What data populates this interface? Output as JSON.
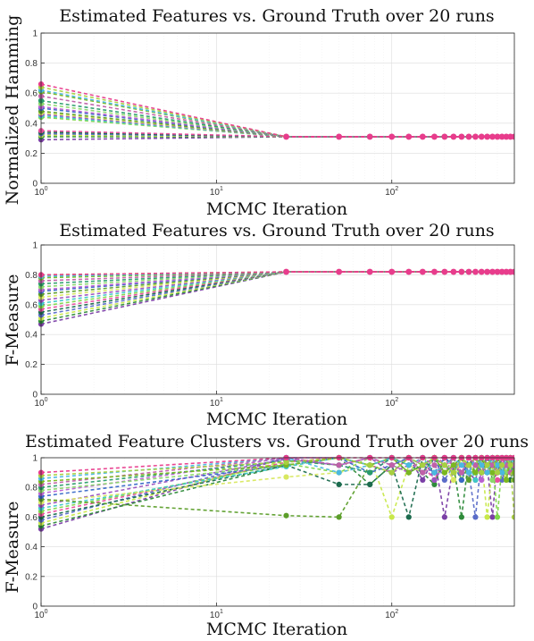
{
  "figure": {
    "xlabel_text": "MCMC Iteration",
    "x_tick_labels": [
      {
        "base": "10",
        "exp": "0"
      },
      {
        "base": "10",
        "exp": "1"
      },
      {
        "base": "10",
        "exp": "2"
      }
    ],
    "y_tick_labels": [
      "0",
      "0.2",
      "0.4",
      "0.6",
      "0.8",
      "1"
    ]
  },
  "colors": {
    "axis": "#262626",
    "grid": "#dcdcdc",
    "palette": [
      "#7b3fa6",
      "#2e8b3a",
      "#c8e84a",
      "#5a6cc8",
      "#1c6b4e",
      "#e84c9c",
      "#7fd64a",
      "#3fc8c8",
      "#9a52c0",
      "#d8e860",
      "#5c9e2a",
      "#3868c8",
      "#b860d0",
      "#8ad86a",
      "#2a9c6a",
      "#c060a8",
      "#7ab820",
      "#4ab8e0",
      "#a8d040",
      "#e83c8c"
    ]
  },
  "chart_data": [
    {
      "type": "line",
      "title": "Estimated Features vs. Ground Truth over 20 runs",
      "xlabel": "MCMC Iteration",
      "ylabel": "Normalized Hamming",
      "xscale": "log",
      "xlim": [
        1,
        500
      ],
      "ylim": [
        0,
        1
      ],
      "grid": true,
      "x": [
        1,
        25,
        50,
        75,
        100,
        125,
        150,
        175,
        200,
        225,
        250,
        275,
        300,
        325,
        350,
        375,
        400,
        425,
        450,
        475,
        500
      ],
      "start_values": [
        0.29,
        0.31,
        0.32,
        0.33,
        0.34,
        0.35,
        0.44,
        0.45,
        0.46,
        0.47,
        0.48,
        0.5,
        0.51,
        0.53,
        0.55,
        0.58,
        0.61,
        0.62,
        0.64,
        0.66
      ],
      "converged_value": 0.31,
      "converged_series_color": "#e83c8c"
    },
    {
      "type": "line",
      "title": "Estimated Features vs. Ground Truth over 20 runs",
      "xlabel": "MCMC Iteration",
      "ylabel": "F-Measure",
      "xscale": "log",
      "xlim": [
        1,
        500
      ],
      "ylim": [
        0,
        1
      ],
      "grid": true,
      "x": [
        1,
        25,
        50,
        75,
        100,
        125,
        150,
        175,
        200,
        225,
        250,
        275,
        300,
        325,
        350,
        375,
        400,
        425,
        450,
        475,
        500
      ],
      "start_values": [
        0.47,
        0.49,
        0.51,
        0.53,
        0.55,
        0.57,
        0.59,
        0.61,
        0.63,
        0.65,
        0.67,
        0.69,
        0.7,
        0.72,
        0.74,
        0.76,
        0.78,
        0.79,
        0.8,
        0.8
      ],
      "converged_value": 0.82,
      "converged_series_color": "#e83c8c"
    },
    {
      "type": "line",
      "title": "Estimated Feature Clusters vs. Ground Truth over 20 runs",
      "xlabel": "MCMC Iteration",
      "ylabel": "F-Measure",
      "xscale": "log",
      "xlim": [
        1,
        500
      ],
      "ylim": [
        0,
        1
      ],
      "grid": true,
      "x": [
        1,
        25,
        50,
        75,
        100,
        125,
        150,
        175,
        200,
        225,
        250,
        275,
        300,
        325,
        350,
        375,
        400,
        425,
        450,
        475,
        500
      ],
      "series_values": [
        [
          0.52,
          1.0,
          1.0,
          0.95,
          0.9,
          1.0,
          0.85,
          1.0,
          0.6,
          0.95,
          1.0,
          0.9,
          0.85,
          1.0,
          0.95,
          0.6,
          1.0,
          0.9,
          0.85,
          1.0,
          0.95
        ],
        [
          0.54,
          0.95,
          1.0,
          0.82,
          0.95,
          1.0,
          0.9,
          0.82,
          1.0,
          0.95,
          0.6,
          1.0,
          0.9,
          0.95,
          1.0,
          0.85,
          0.9,
          1.0,
          0.95,
          0.9,
          1.0
        ],
        [
          0.56,
          0.98,
          0.95,
          1.0,
          0.6,
          0.95,
          1.0,
          0.9,
          0.95,
          0.85,
          1.0,
          0.95,
          0.9,
          1.0,
          0.6,
          0.95,
          1.0,
          0.9,
          0.85,
          0.95,
          1.0
        ],
        [
          0.58,
          1.0,
          0.95,
          0.9,
          1.0,
          0.95,
          0.9,
          1.0,
          0.85,
          0.95,
          1.0,
          0.9,
          0.6,
          1.0,
          0.95,
          0.9,
          1.0,
          0.85,
          0.95,
          1.0,
          0.9
        ],
        [
          0.6,
          0.95,
          0.82,
          0.82,
          0.95,
          0.6,
          1.0,
          0.9,
          0.95,
          1.0,
          0.85,
          0.95,
          1.0,
          0.9,
          0.95,
          1.0,
          0.9,
          0.95,
          1.0,
          0.85,
          0.95
        ],
        [
          0.62,
          0.97,
          1.0,
          0.95,
          0.9,
          1.0,
          0.95,
          0.85,
          1.0,
          0.9,
          0.95,
          1.0,
          0.95,
          0.9,
          1.0,
          0.95,
          0.85,
          1.0,
          0.9,
          0.95,
          1.0
        ],
        [
          0.64,
          0.96,
          0.9,
          1.0,
          0.95,
          0.9,
          1.0,
          0.95,
          0.9,
          1.0,
          0.85,
          0.95,
          1.0,
          0.9,
          0.95,
          1.0,
          0.6,
          0.95,
          1.0,
          0.9,
          0.95
        ],
        [
          0.66,
          0.94,
          1.0,
          0.95,
          1.0,
          0.9,
          0.95,
          1.0,
          0.95,
          0.9,
          1.0,
          0.95,
          0.85,
          1.0,
          0.95,
          0.9,
          1.0,
          0.95,
          0.9,
          1.0,
          0.95
        ],
        [
          0.68,
          0.99,
          0.95,
          1.0,
          0.9,
          0.95,
          1.0,
          0.85,
          0.95,
          1.0,
          0.9,
          0.95,
          1.0,
          0.95,
          0.9,
          1.0,
          0.95,
          0.9,
          1.0,
          0.95,
          0.9
        ],
        [
          0.7,
          0.87,
          0.9,
          0.95,
          1.0,
          0.95,
          0.9,
          1.0,
          0.95,
          0.85,
          1.0,
          0.9,
          0.95,
          1.0,
          0.95,
          0.9,
          1.0,
          0.95,
          0.85,
          1.0,
          0.95
        ],
        [
          0.72,
          0.61,
          0.6,
          0.95,
          1.0,
          0.9,
          0.95,
          1.0,
          0.9,
          0.95,
          1.0,
          0.85,
          0.95,
          1.0,
          0.9,
          0.95,
          1.0,
          0.9,
          0.95,
          1.0,
          0.85
        ],
        [
          0.74,
          0.95,
          1.0,
          0.9,
          0.95,
          1.0,
          0.95,
          0.9,
          1.0,
          0.95,
          0.85,
          1.0,
          0.95,
          0.9,
          1.0,
          0.95,
          0.9,
          1.0,
          0.95,
          0.9,
          1.0
        ],
        [
          0.76,
          1.0,
          0.95,
          1.0,
          0.95,
          0.9,
          1.0,
          0.95,
          0.9,
          1.0,
          0.95,
          0.9,
          1.0,
          0.85,
          0.95,
          1.0,
          0.9,
          0.95,
          1.0,
          0.95,
          0.9
        ],
        [
          0.78,
          0.95,
          1.0,
          0.95,
          0.9,
          1.0,
          0.95,
          1.0,
          0.9,
          0.95,
          1.0,
          0.95,
          0.9,
          1.0,
          0.95,
          0.85,
          1.0,
          0.95,
          0.9,
          1.0,
          0.95
        ],
        [
          0.8,
          0.98,
          0.95,
          0.9,
          1.0,
          0.95,
          0.9,
          1.0,
          0.95,
          0.9,
          1.0,
          0.95,
          1.0,
          0.9,
          0.95,
          1.0,
          0.95,
          0.9,
          1.0,
          0.95,
          0.9
        ],
        [
          0.82,
          1.0,
          0.95,
          1.0,
          0.95,
          1.0,
          0.9,
          0.95,
          1.0,
          0.95,
          0.9,
          1.0,
          0.95,
          0.9,
          1.0,
          0.95,
          0.9,
          1.0,
          0.95,
          0.9,
          0.95
        ],
        [
          0.84,
          0.95,
          1.0,
          0.95,
          1.0,
          0.9,
          0.95,
          1.0,
          0.9,
          0.95,
          1.0,
          0.95,
          0.9,
          1.0,
          0.95,
          0.9,
          1.0,
          0.95,
          0.85,
          1.0,
          0.9
        ],
        [
          0.86,
          1.0,
          0.9,
          0.95,
          1.0,
          0.95,
          1.0,
          0.9,
          0.95,
          1.0,
          0.95,
          0.9,
          1.0,
          0.95,
          0.9,
          1.0,
          0.95,
          0.9,
          1.0,
          0.95,
          1.0
        ],
        [
          0.88,
          0.97,
          1.0,
          0.95,
          0.9,
          1.0,
          0.95,
          1.0,
          0.95,
          0.9,
          1.0,
          0.95,
          1.0,
          0.9,
          0.95,
          1.0,
          0.9,
          0.95,
          1.0,
          0.95,
          0.6
        ],
        [
          0.9,
          1.0,
          1.0,
          1.0,
          1.0,
          1.0,
          1.0,
          1.0,
          1.0,
          1.0,
          1.0,
          1.0,
          1.0,
          1.0,
          1.0,
          1.0,
          1.0,
          1.0,
          1.0,
          1.0,
          1.0
        ]
      ]
    }
  ]
}
